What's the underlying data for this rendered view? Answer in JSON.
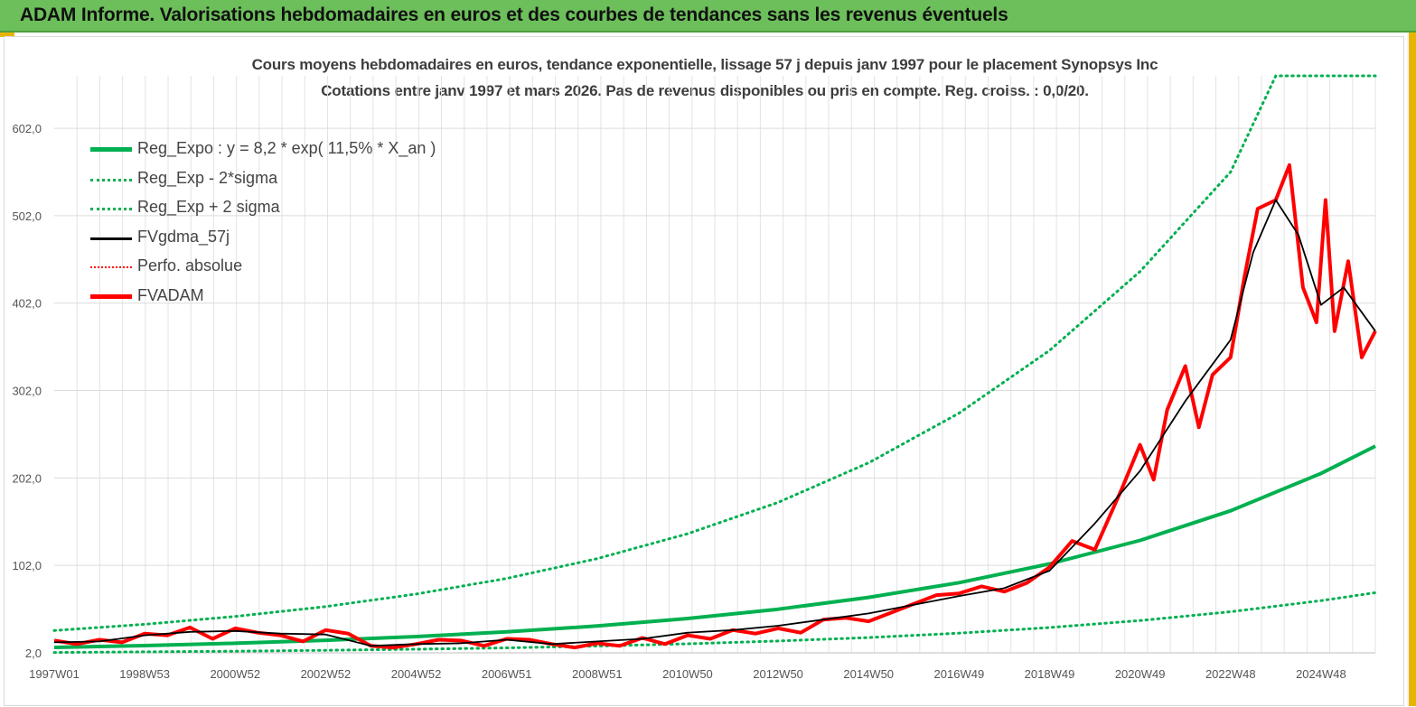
{
  "header": {
    "title": "ADAM Informe. Valorisations hebdomadaires en euros et des courbes de tendances sans les revenus éventuels"
  },
  "chart_data": {
    "type": "line",
    "title": "Cours moyens hebdomadaires en euros, tendance exponentielle, lissage 57 j depuis janv 1997 pour le placement Synopsys Inc",
    "subtitle": "Cotations entre janv 1997 et mars 2026. Pas de revenus disponibles ou pris en compte. Reg. croiss. : 0,0/20.",
    "xlabel": "",
    "ylabel": "",
    "ylim": [
      2.0,
      662.0
    ],
    "x_range": [
      1997.0,
      2026.2
    ],
    "y_ticks": [
      "2,0",
      "102,0",
      "202,0",
      "302,0",
      "402,0",
      "502,0",
      "602,0"
    ],
    "y_tick_values": [
      2,
      102,
      202,
      302,
      402,
      502,
      602
    ],
    "x_ticks": [
      "1997W01",
      "1998W53",
      "2000W52",
      "2002W52",
      "2004W52",
      "2006W51",
      "2008W51",
      "2010W50",
      "2012W50",
      "2014W50",
      "2016W49",
      "2018W49",
      "2020W49",
      "2022W48",
      "2024W48"
    ],
    "x_tick_values": [
      1997.0,
      1999.0,
      2001.0,
      2003.0,
      2005.0,
      2007.0,
      2009.0,
      2011.0,
      2013.0,
      2015.0,
      2017.0,
      2019.0,
      2021.0,
      2023.0,
      2025.0
    ],
    "grid": "vertical-and-horizontal",
    "legend_position": "top-left",
    "series": [
      {
        "name": "Reg_Expo : y = 8,2 * exp( 11,5% *  X_an )",
        "color": "#00b050",
        "style": "solid-thick",
        "x": [
          1997.0,
          1999.0,
          2001.0,
          2003.0,
          2005.0,
          2007.0,
          2009.0,
          2011.0,
          2013.0,
          2015.0,
          2017.0,
          2019.0,
          2021.0,
          2023.0,
          2025.0,
          2026.2
        ],
        "values": [
          8.2,
          10.3,
          13.0,
          16.4,
          20.6,
          26.0,
          32.7,
          41.2,
          51.9,
          65.4,
          82.3,
          103.7,
          130.6,
          164.5,
          207.2,
          238.4
        ]
      },
      {
        "name": "Reg_Exp - 2*sigma",
        "color": "#00b050",
        "style": "dotted",
        "x": [
          1997.0,
          1999.0,
          2001.0,
          2003.0,
          2005.0,
          2007.0,
          2009.0,
          2011.0,
          2013.0,
          2015.0,
          2017.0,
          2019.0,
          2021.0,
          2023.0,
          2025.0,
          2026.2
        ],
        "values": [
          2.4,
          3.1,
          3.9,
          4.9,
          6.1,
          7.7,
          9.7,
          12.3,
          15.5,
          19.5,
          24.5,
          30.9,
          38.9,
          49.0,
          61.7,
          70.8
        ]
      },
      {
        "name": "Reg_Exp + 2 sigma",
        "color": "#00b050",
        "style": "dotted",
        "x": [
          1997.0,
          1999.0,
          2001.0,
          2003.0,
          2005.0,
          2007.0,
          2009.0,
          2011.0,
          2013.0,
          2015.0,
          2017.0,
          2019.0,
          2021.0,
          2023.0,
          2024.0,
          2026.2
        ],
        "values": [
          27.5,
          34.6,
          43.6,
          54.9,
          69.2,
          87.1,
          109.7,
          138.2,
          174.1,
          219.3,
          276.2,
          347.9,
          438.2,
          552.0,
          662.0,
          662.0
        ]
      },
      {
        "name": "FVgdma_57j",
        "color": "#000000",
        "style": "solid",
        "x": [
          1997.0,
          1998.0,
          1999.0,
          2000.0,
          2001.0,
          2002.0,
          2003.0,
          2004.0,
          2005.0,
          2006.0,
          2007.0,
          2008.0,
          2009.0,
          2010.0,
          2011.0,
          2012.0,
          2013.0,
          2014.0,
          2015.0,
          2016.0,
          2017.0,
          2018.0,
          2019.0,
          2020.0,
          2021.0,
          2022.0,
          2023.0,
          2023.5,
          2024.0,
          2024.5,
          2025.0,
          2025.5,
          2026.2
        ],
        "values": [
          14,
          15,
          22,
          26,
          27,
          24,
          23,
          10,
          12,
          13,
          17,
          12,
          15,
          18,
          25,
          28,
          33,
          40,
          47,
          57,
          67,
          76,
          96,
          150,
          210,
          290,
          360,
          460,
          520,
          480,
          400,
          420,
          370
        ]
      },
      {
        "name": "Perfo. absolue",
        "color": "#ff0000",
        "style": "dotted",
        "x": [],
        "values": []
      },
      {
        "name": "FVADAM",
        "color": "#ff0000",
        "style": "solid-thick",
        "x": [
          1997.0,
          1997.5,
          1998.0,
          1998.5,
          1999.0,
          1999.5,
          2000.0,
          2000.5,
          2001.0,
          2001.5,
          2002.0,
          2002.5,
          2003.0,
          2003.5,
          2004.0,
          2004.5,
          2005.0,
          2005.5,
          2006.0,
          2006.5,
          2007.0,
          2007.5,
          2008.0,
          2008.5,
          2009.0,
          2009.5,
          2010.0,
          2010.5,
          2011.0,
          2011.5,
          2012.0,
          2012.5,
          2013.0,
          2013.5,
          2014.0,
          2014.5,
          2015.0,
          2015.5,
          2016.0,
          2016.5,
          2017.0,
          2017.5,
          2018.0,
          2018.5,
          2019.0,
          2019.5,
          2020.0,
          2020.3,
          2020.6,
          2021.0,
          2021.3,
          2021.6,
          2022.0,
          2022.3,
          2022.6,
          2023.0,
          2023.3,
          2023.6,
          2024.0,
          2024.3,
          2024.6,
          2024.9,
          2025.1,
          2025.3,
          2025.6,
          2025.9,
          2026.2
        ],
        "values": [
          16,
          12,
          17,
          14,
          24,
          22,
          31,
          18,
          30,
          25,
          22,
          15,
          28,
          24,
          10,
          8,
          12,
          17,
          16,
          10,
          18,
          17,
          12,
          8,
          13,
          10,
          19,
          12,
          22,
          18,
          28,
          24,
          30,
          25,
          40,
          42,
          38,
          48,
          58,
          68,
          70,
          78,
          72,
          82,
          100,
          130,
          120,
          155,
          190,
          240,
          200,
          280,
          330,
          260,
          320,
          340,
          430,
          510,
          520,
          560,
          420,
          380,
          520,
          370,
          450,
          340,
          370
        ]
      }
    ]
  }
}
